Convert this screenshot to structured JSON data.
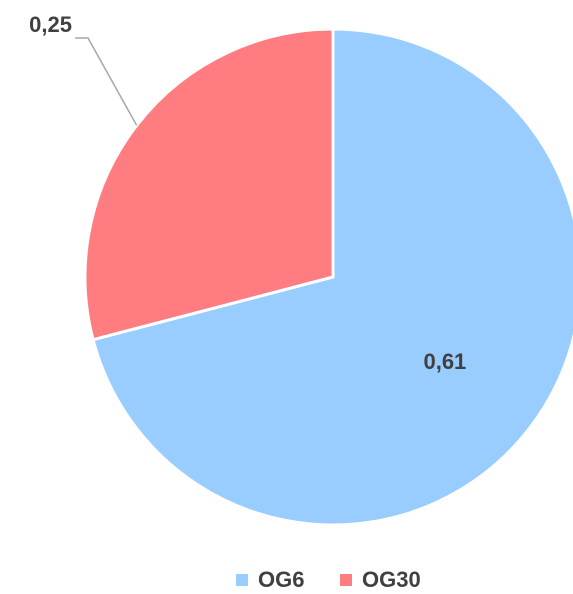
{
  "chart_data": {
    "type": "pie",
    "categories": [
      "OG6",
      "OG30"
    ],
    "values": [
      0.61,
      0.25
    ],
    "value_labels": [
      "0,61",
      "0,25"
    ],
    "colors": [
      "#99ccff",
      "#ff7c80"
    ],
    "legend": "bottom"
  }
}
